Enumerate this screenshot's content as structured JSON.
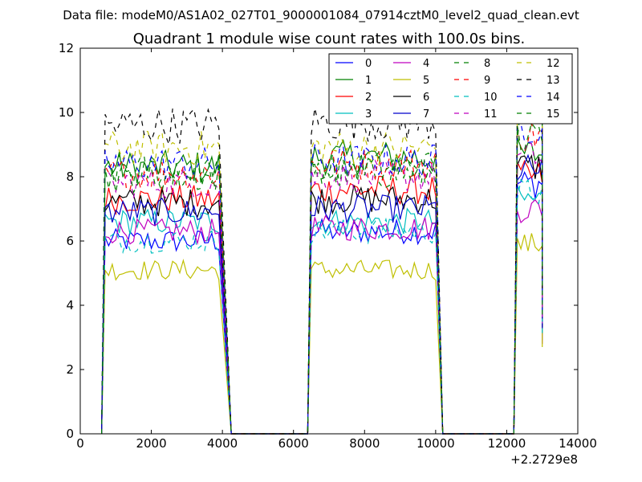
{
  "chart_data": {
    "type": "line",
    "suptitle": "Data file: modeM0/AS1A02_027T01_9000001084_07914cztM0_level2_quad_clean.evt",
    "title": "Quadrant 1 module wise count rates with 100.0s bins.",
    "xlabel": "",
    "ylabel": "",
    "offset_label": "+2.2729e8",
    "xlim": [
      0,
      14000
    ],
    "ylim": [
      0,
      12
    ],
    "xticks": [
      0,
      2000,
      4000,
      6000,
      8000,
      10000,
      12000,
      14000
    ],
    "yticks": [
      0,
      2,
      4,
      6,
      8,
      10,
      12
    ],
    "legend_position": "top-right",
    "segments": [
      {
        "x_start": 700,
        "x_end": 3900,
        "drop_end": 4250
      },
      {
        "x_start": 6500,
        "x_end": 10000,
        "drop_end": 10200
      },
      {
        "x_start": 12300,
        "x_end": 13000,
        "drop_end": 13000
      }
    ],
    "series": [
      {
        "name": "0",
        "color": "#0000ff",
        "dash": "solid",
        "levels": [
          6.0,
          6.3,
          7.8
        ]
      },
      {
        "name": "1",
        "color": "#008000",
        "dash": "solid",
        "levels": [
          8.3,
          8.6,
          8.7
        ]
      },
      {
        "name": "2",
        "color": "#ff0000",
        "dash": "solid",
        "levels": [
          7.3,
          7.6,
          8.0
        ]
      },
      {
        "name": "3",
        "color": "#00bfbf",
        "dash": "solid",
        "levels": [
          6.6,
          6.6,
          7.3
        ]
      },
      {
        "name": "4",
        "color": "#bf00bf",
        "dash": "solid",
        "levels": [
          6.3,
          6.4,
          7.0
        ]
      },
      {
        "name": "5",
        "color": "#bfbf00",
        "dash": "solid",
        "levels": [
          5.1,
          5.1,
          5.9
        ]
      },
      {
        "name": "6",
        "color": "#000000",
        "dash": "solid",
        "levels": [
          7.2,
          7.3,
          8.3
        ]
      },
      {
        "name": "7",
        "color": "#0000cc",
        "dash": "solid",
        "levels": [
          6.9,
          7.0,
          8.2
        ]
      },
      {
        "name": "8",
        "color": "#008000",
        "dash": "dashed",
        "levels": [
          8.2,
          8.1,
          9.7
        ]
      },
      {
        "name": "9",
        "color": "#ff0000",
        "dash": "dashed",
        "levels": [
          8.1,
          8.4,
          9.3
        ]
      },
      {
        "name": "10",
        "color": "#00bfbf",
        "dash": "dashed",
        "levels": [
          6.0,
          6.3,
          7.5
        ]
      },
      {
        "name": "11",
        "color": "#bf00bf",
        "dash": "dashed",
        "levels": [
          7.8,
          8.0,
          8.6
        ]
      },
      {
        "name": "12",
        "color": "#bfbf00",
        "dash": "dashed",
        "levels": [
          8.9,
          8.9,
          10.6
        ]
      },
      {
        "name": "13",
        "color": "#000000",
        "dash": "dashed",
        "levels": [
          9.6,
          9.7,
          10.8
        ]
      },
      {
        "name": "14",
        "color": "#0000ff",
        "dash": "dashed",
        "levels": [
          8.4,
          8.5,
          9.6
        ]
      },
      {
        "name": "15",
        "color": "#008000",
        "dash": "dashed",
        "levels": [
          8.0,
          8.3,
          9.2
        ]
      }
    ]
  }
}
